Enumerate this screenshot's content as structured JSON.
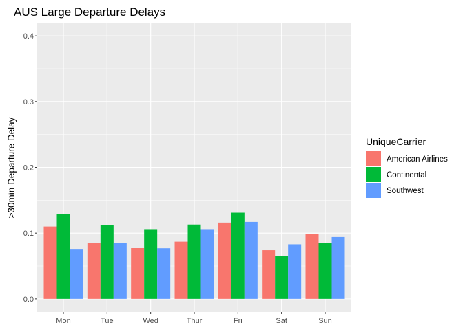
{
  "chart_data": {
    "type": "bar",
    "title": "AUS Large Departure Delays",
    "xlabel": "",
    "ylabel": ">30min Departure Delay",
    "categories": [
      "Mon",
      "Tue",
      "Wed",
      "Thur",
      "Fri",
      "Sat",
      "Sun"
    ],
    "ylim": [
      -0.02,
      0.42
    ],
    "yticks": [
      0.0,
      0.1,
      0.2,
      0.3,
      0.4
    ],
    "ytick_labels": [
      "0.0",
      "0.1",
      "0.2",
      "0.3",
      "0.4"
    ],
    "grid": true,
    "legend_position": "right",
    "legend_title": "UniqueCarrier",
    "series": [
      {
        "name": "American Airlines",
        "color": "#F8766D",
        "values": [
          0.11,
          0.085,
          0.078,
          0.087,
          0.116,
          0.074,
          0.099
        ]
      },
      {
        "name": "Continental",
        "color": "#00BA38",
        "values": [
          0.129,
          0.112,
          0.106,
          0.113,
          0.131,
          0.065,
          0.085
        ]
      },
      {
        "name": "Southwest",
        "color": "#619CFF",
        "values": [
          0.076,
          0.085,
          0.077,
          0.106,
          0.117,
          0.083,
          0.094
        ]
      }
    ]
  }
}
